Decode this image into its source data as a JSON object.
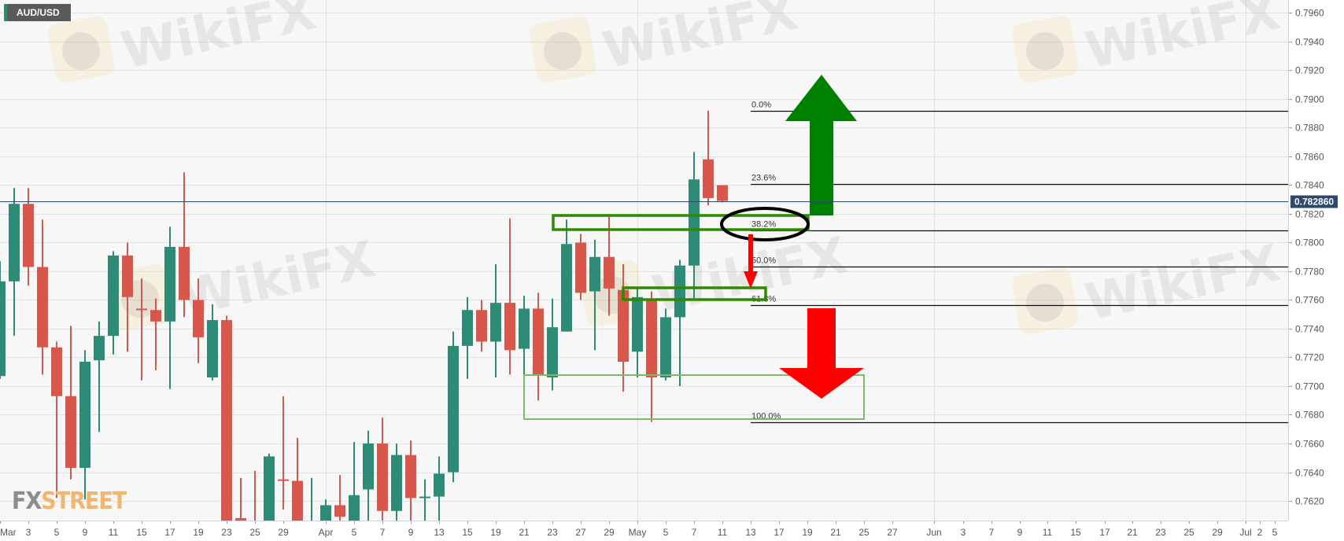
{
  "symbol": "AUD/USD",
  "logo": {
    "fx": "FX",
    "street": "STREET"
  },
  "watermark": "WikiFX",
  "colors": {
    "up": "#2e8b76",
    "down": "#d9574a",
    "price_label": "#2b4a6e",
    "zone": "#2f8a00",
    "zone_light": "#7fb86a",
    "arrow_up": "#008000",
    "arrow_down": "#ff0000",
    "ellipse": "#000000"
  },
  "chart_data": {
    "type": "candlestick",
    "title": "AUD/USD",
    "ylim": [
      0.7606,
      0.797
    ],
    "y_ticks": [
      "0.7620",
      "0.7640",
      "0.7660",
      "0.7680",
      "0.7700",
      "0.7720",
      "0.7740",
      "0.7760",
      "0.7780",
      "0.7800",
      "0.7820",
      "0.7840",
      "0.7860",
      "0.7880",
      "0.7900",
      "0.7920",
      "0.7940",
      "0.7960"
    ],
    "x_ticks": [
      "Mar",
      "3",
      "5",
      "9",
      "11",
      "15",
      "17",
      "19",
      "23",
      "25",
      "29",
      "Apr",
      "5",
      "7",
      "9",
      "13",
      "15",
      "19",
      "21",
      "23",
      "27",
      "29",
      "May",
      "5",
      "7",
      "11",
      "13",
      "17",
      "19",
      "21",
      "25",
      "27",
      "Jun",
      "3",
      "7",
      "9",
      "11",
      "15",
      "17",
      "21",
      "23",
      "25",
      "29",
      "Jul",
      "2",
      "5"
    ],
    "grid": true,
    "current_price": "0.782860",
    "candles": [
      {
        "date": "Mar 1",
        "o": 0.7707,
        "h": 0.7787,
        "l": 0.7705,
        "c": 0.7773
      },
      {
        "date": "Mar 2",
        "o": 0.7773,
        "h": 0.7838,
        "l": 0.7735,
        "c": 0.7827
      },
      {
        "date": "Mar 3",
        "o": 0.7827,
        "h": 0.7838,
        "l": 0.777,
        "c": 0.7783
      },
      {
        "date": "Mar 4",
        "o": 0.7783,
        "h": 0.7816,
        "l": 0.7708,
        "c": 0.7727
      },
      {
        "date": "Mar 5",
        "o": 0.7727,
        "h": 0.7731,
        "l": 0.7622,
        "c": 0.7693
      },
      {
        "date": "Mar 8",
        "o": 0.7693,
        "h": 0.7742,
        "l": 0.7635,
        "c": 0.7643
      },
      {
        "date": "Mar 9",
        "o": 0.7643,
        "h": 0.7725,
        "l": 0.7621,
        "c": 0.7717
      },
      {
        "date": "Mar 10",
        "o": 0.7718,
        "h": 0.7745,
        "l": 0.7668,
        "c": 0.7735
      },
      {
        "date": "Mar 11",
        "o": 0.7735,
        "h": 0.7794,
        "l": 0.7722,
        "c": 0.7791
      },
      {
        "date": "Mar 12",
        "o": 0.7791,
        "h": 0.78,
        "l": 0.7724,
        "c": 0.7762
      },
      {
        "date": "Mar 15",
        "o": 0.7754,
        "h": 0.7775,
        "l": 0.7704,
        "c": 0.7753
      },
      {
        "date": "Mar 16",
        "o": 0.7753,
        "h": 0.7761,
        "l": 0.7711,
        "c": 0.7745
      },
      {
        "date": "Mar 17",
        "o": 0.7745,
        "h": 0.7811,
        "l": 0.7698,
        "c": 0.7797
      },
      {
        "date": "Mar 18",
        "o": 0.7797,
        "h": 0.7849,
        "l": 0.7748,
        "c": 0.776
      },
      {
        "date": "Mar 19",
        "o": 0.776,
        "h": 0.7775,
        "l": 0.7716,
        "c": 0.7734
      },
      {
        "date": "Mar 22",
        "o": 0.7706,
        "h": 0.7757,
        "l": 0.7704,
        "c": 0.7746
      },
      {
        "date": "Mar 23",
        "o": 0.7746,
        "h": 0.7749,
        "l": 0.759,
        "c": 0.76
      },
      {
        "date": "Mar 24",
        "o": 0.7608,
        "h": 0.7636,
        "l": 0.759,
        "c": 0.76
      },
      {
        "date": "Mar 25",
        "o": 0.7605,
        "h": 0.7641,
        "l": 0.759,
        "c": 0.7598
      },
      {
        "date": "Mar 26",
        "o": 0.7598,
        "h": 0.7653,
        "l": 0.759,
        "c": 0.7651
      },
      {
        "date": "Mar 29",
        "o": 0.7635,
        "h": 0.7693,
        "l": 0.7614,
        "c": 0.7634
      },
      {
        "date": "Mar 30",
        "o": 0.7634,
        "h": 0.7664,
        "l": 0.759,
        "c": 0.76
      },
      {
        "date": "Mar 31",
        "o": 0.7598,
        "h": 0.7636,
        "l": 0.759,
        "c": 0.7605
      },
      {
        "date": "Apr 1",
        "o": 0.7605,
        "h": 0.7621,
        "l": 0.76,
        "c": 0.7617
      },
      {
        "date": "Apr 2",
        "o": 0.7617,
        "h": 0.7638,
        "l": 0.76,
        "c": 0.7609
      },
      {
        "date": "Apr 5",
        "o": 0.76,
        "h": 0.7661,
        "l": 0.7595,
        "c": 0.7624
      },
      {
        "date": "Apr 6",
        "o": 0.7628,
        "h": 0.7669,
        "l": 0.7595,
        "c": 0.766
      },
      {
        "date": "Apr 7",
        "o": 0.766,
        "h": 0.7678,
        "l": 0.759,
        "c": 0.7613
      },
      {
        "date": "Apr 8",
        "o": 0.7613,
        "h": 0.766,
        "l": 0.7595,
        "c": 0.7652
      },
      {
        "date": "Apr 9",
        "o": 0.7652,
        "h": 0.7662,
        "l": 0.7595,
        "c": 0.7622
      },
      {
        "date": "Apr 12",
        "o": 0.7622,
        "h": 0.7635,
        "l": 0.7595,
        "c": 0.7623
      },
      {
        "date": "Apr 13",
        "o": 0.7623,
        "h": 0.7651,
        "l": 0.7595,
        "c": 0.7639
      },
      {
        "date": "Apr 14",
        "o": 0.764,
        "h": 0.7738,
        "l": 0.7633,
        "c": 0.7728
      },
      {
        "date": "Apr 15",
        "o": 0.7728,
        "h": 0.7762,
        "l": 0.7705,
        "c": 0.7753
      },
      {
        "date": "Apr 16",
        "o": 0.7753,
        "h": 0.776,
        "l": 0.7724,
        "c": 0.7731
      },
      {
        "date": "Apr 19",
        "o": 0.7731,
        "h": 0.7785,
        "l": 0.7706,
        "c": 0.7758
      },
      {
        "date": "Apr 20",
        "o": 0.7758,
        "h": 0.7817,
        "l": 0.7708,
        "c": 0.7725
      },
      {
        "date": "Apr 21",
        "o": 0.7726,
        "h": 0.7763,
        "l": 0.7699,
        "c": 0.7754
      },
      {
        "date": "Apr 22",
        "o": 0.7754,
        "h": 0.7765,
        "l": 0.769,
        "c": 0.7708
      },
      {
        "date": "Apr 23",
        "o": 0.7706,
        "h": 0.7761,
        "l": 0.7697,
        "c": 0.7741
      },
      {
        "date": "Apr 26",
        "o": 0.7738,
        "h": 0.7816,
        "l": 0.7738,
        "c": 0.7799
      },
      {
        "date": "Apr 27",
        "o": 0.78,
        "h": 0.7806,
        "l": 0.776,
        "c": 0.7765
      },
      {
        "date": "Apr 28",
        "o": 0.7766,
        "h": 0.7802,
        "l": 0.7725,
        "c": 0.779
      },
      {
        "date": "Apr 29",
        "o": 0.779,
        "h": 0.7818,
        "l": 0.7749,
        "c": 0.7768
      },
      {
        "date": "Apr 30",
        "o": 0.7767,
        "h": 0.7785,
        "l": 0.7696,
        "c": 0.7717
      },
      {
        "date": "May 3",
        "o": 0.7724,
        "h": 0.7768,
        "l": 0.7706,
        "c": 0.7762
      },
      {
        "date": "May 4",
        "o": 0.7761,
        "h": 0.7766,
        "l": 0.7675,
        "c": 0.7706
      },
      {
        "date": "May 5",
        "o": 0.7706,
        "h": 0.7754,
        "l": 0.7704,
        "c": 0.7748
      },
      {
        "date": "May 6",
        "o": 0.7748,
        "h": 0.7788,
        "l": 0.77,
        "c": 0.7784
      },
      {
        "date": "May 7",
        "o": 0.7784,
        "h": 0.7863,
        "l": 0.7761,
        "c": 0.7844
      },
      {
        "date": "May 10",
        "o": 0.7858,
        "h": 0.7892,
        "l": 0.7826,
        "c": 0.7831
      },
      {
        "date": "May 11",
        "o": 0.784,
        "h": 0.784,
        "l": 0.7828,
        "c": 0.7829
      }
    ],
    "fibonacci": [
      {
        "label": "0.0%",
        "value": 0.7892
      },
      {
        "label": "23.6%",
        "value": 0.78406
      },
      {
        "label": "38.2%",
        "value": 0.78087
      },
      {
        "label": "50.0%",
        "value": 0.77835
      },
      {
        "label": "61.8%",
        "value": 0.77563
      },
      {
        "label": "100.0%",
        "value": 0.7675
      }
    ]
  }
}
